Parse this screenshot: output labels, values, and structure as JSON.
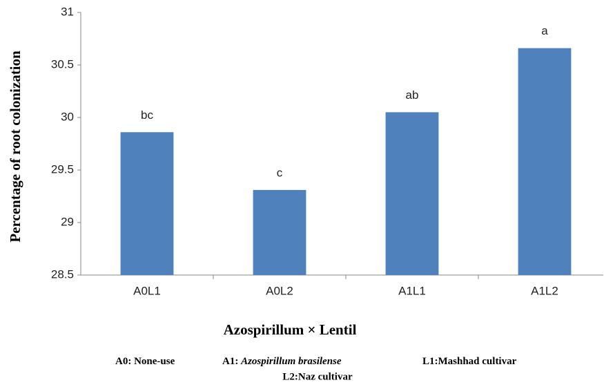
{
  "chart_data": {
    "type": "bar",
    "x_label": "Azospirillum × Lentil",
    "y_label": "Percentage of root colonization",
    "categories": [
      "A0L1",
      "A0L2",
      "A1L1",
      "A1L2"
    ],
    "values": [
      29.86,
      29.31,
      30.05,
      30.66
    ],
    "letters": [
      "bc",
      "c",
      "ab",
      "a"
    ],
    "color": "#4f81bd",
    "ylim": [
      28.5,
      31
    ],
    "yticks": [
      28.5,
      29,
      29.5,
      30,
      30.5,
      31
    ],
    "grid": false,
    "footnote": [
      "A0: None-use",
      "A1:",
      "Azospirillum brasilense",
      "L1:Mashhad cultivar",
      "L2:Naz cultivar"
    ]
  }
}
